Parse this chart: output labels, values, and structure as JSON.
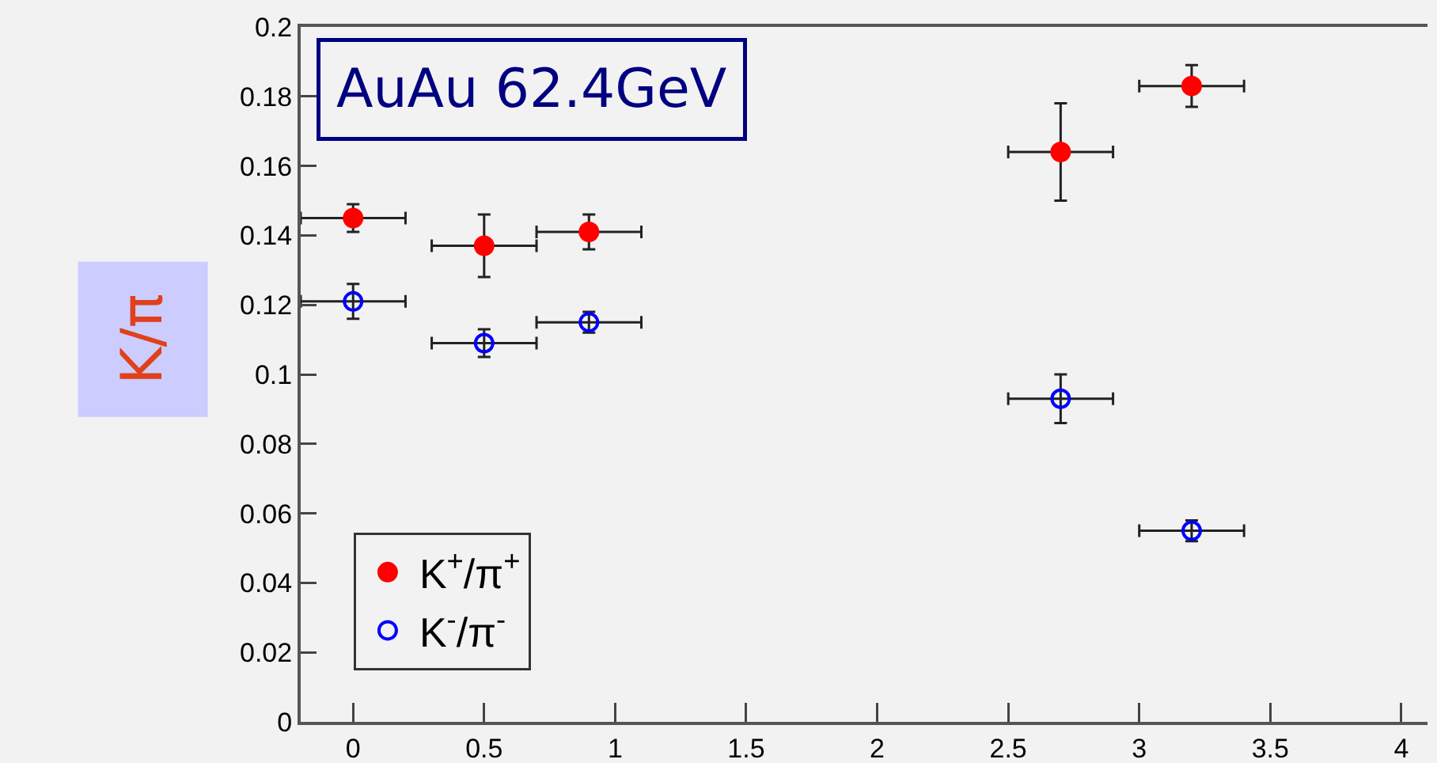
{
  "chart_data": {
    "type": "scatter",
    "ylabel": "K/π",
    "annotations": [
      "AuAu 62.4GeV"
    ],
    "xlim": [
      -0.2,
      4.1
    ],
    "xticks": [
      0,
      0.5,
      1,
      1.5,
      2,
      2.5,
      3,
      3.5,
      4
    ],
    "ylim": [
      0,
      0.2
    ],
    "yticks": [
      0,
      0.02,
      0.04,
      0.06,
      0.08,
      0.1,
      0.12,
      0.14,
      0.16,
      0.18,
      0.2
    ],
    "grid": false,
    "legend": "bottom left",
    "series": [
      {
        "name": "K$^{+}$/π$^{+}$",
        "color": "#ff0000",
        "marker": "circle",
        "x": [
          0,
          0.5,
          0.9,
          2.7,
          3.2
        ],
        "values": [
          0.145,
          0.137,
          0.141,
          0.164,
          0.183
        ],
        "errors": [
          0.004,
          0.009,
          0.005,
          0.014,
          0.006
        ],
        "xerrors": [
          0.2,
          0.2,
          0.2,
          0.2,
          0.2
        ]
      },
      {
        "name": "K$^{-}$/π$^{-}$",
        "color": "#0000ff",
        "marker": "circle-open",
        "x": [
          0,
          0.5,
          0.9,
          2.7,
          3.2
        ],
        "values": [
          0.121,
          0.109,
          0.115,
          0.093,
          0.055
        ],
        "errors": [
          0.005,
          0.004,
          0.003,
          0.007,
          0.003
        ],
        "xerrors": [
          0.2,
          0.2,
          0.2,
          0.2,
          0.2
        ]
      }
    ]
  }
}
